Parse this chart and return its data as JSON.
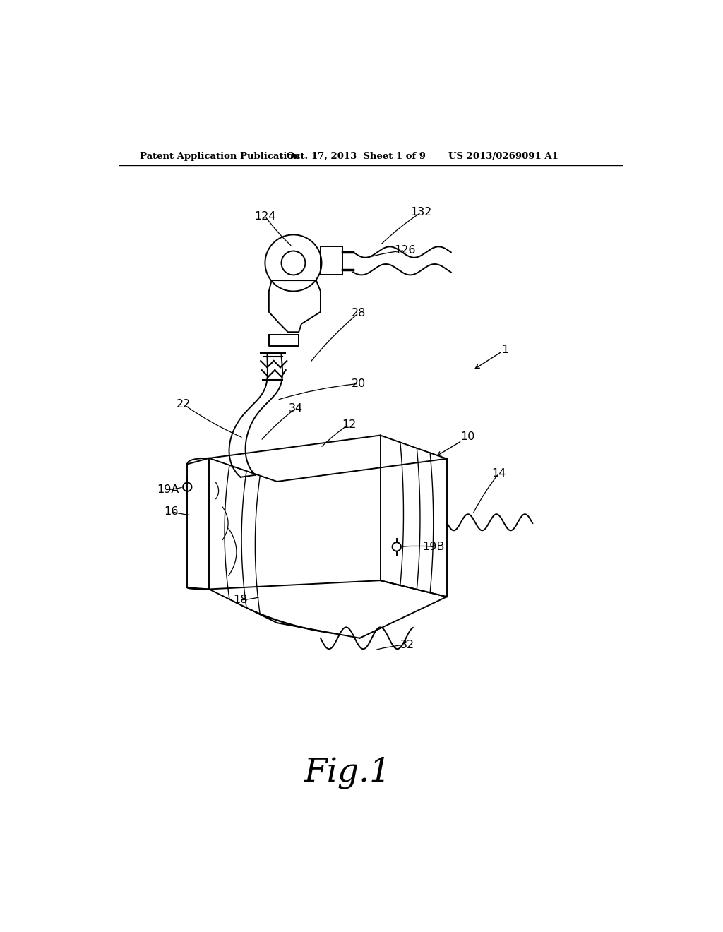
{
  "background_color": "#ffffff",
  "header_left": "Patent Application Publication",
  "header_center": "Oct. 17, 2013  Sheet 1 of 9",
  "header_right": "US 2013/0269091 A1",
  "figure_label": "Fig.1"
}
